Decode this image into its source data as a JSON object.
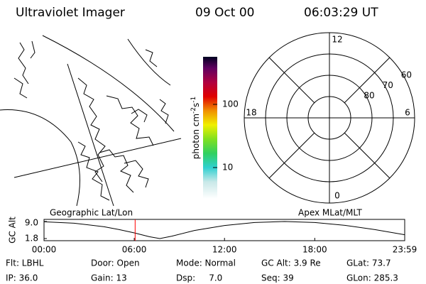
{
  "header": {
    "title": "Ultraviolet Imager",
    "date": "09 Oct 00",
    "time": "06:03:29 UT"
  },
  "colorbar": {
    "unit": [
      "photon cm",
      "-2",
      "s",
      "-1"
    ],
    "clim": [
      3.2,
      566
    ],
    "log": true,
    "ticks": [
      10,
      100
    ]
  },
  "polar": {
    "lat_lim": [
      50,
      90
    ],
    "lat_ticks": [
      60,
      70,
      80
    ],
    "mlt_ticks": [
      12,
      6,
      0,
      18
    ]
  },
  "chart_data": {
    "type": "line",
    "ylabel": "GC Alt",
    "annotations": [
      "Geographic Lat/Lon",
      "Apex MLat/MLT"
    ],
    "x": [
      0,
      2,
      4,
      5,
      6,
      7,
      7.7,
      8.5,
      10,
      12,
      14,
      16,
      18,
      20,
      22,
      23.98
    ],
    "values": [
      8.9,
      8.3,
      6.8,
      5.6,
      4.2,
      2.6,
      1.8,
      2.8,
      5.2,
      7.3,
      8.6,
      9.0,
      8.6,
      7.4,
      5.6,
      3.4
    ],
    "color": "#000000",
    "cursor_x": 6.058,
    "cursor_color": "#ff0000",
    "xlim": [
      0,
      23.98
    ],
    "xticks": [
      {
        "value": 0,
        "label": "00:00"
      },
      {
        "value": 6,
        "label": "06:00"
      },
      {
        "value": 12,
        "label": "12:00"
      },
      {
        "value": 18,
        "label": "18:00"
      },
      {
        "value": 23.98,
        "label": "23:59"
      }
    ],
    "ylim": [
      1.8,
      9.0
    ],
    "yticks": [
      {
        "value": 9.0,
        "label": "9.0"
      },
      1.8
    ]
  },
  "footer": [
    [
      "Flt: LBHL",
      "IP: 36.0"
    ],
    [
      "Door: Open",
      "Gain: 13"
    ],
    [
      "Mode: Normal",
      "Dsp:     7.0"
    ],
    [
      "GC Alt: 3.9 Re",
      "Seq: 39"
    ],
    [
      "GLat: 73.7",
      "GLon: 285.3"
    ]
  ]
}
